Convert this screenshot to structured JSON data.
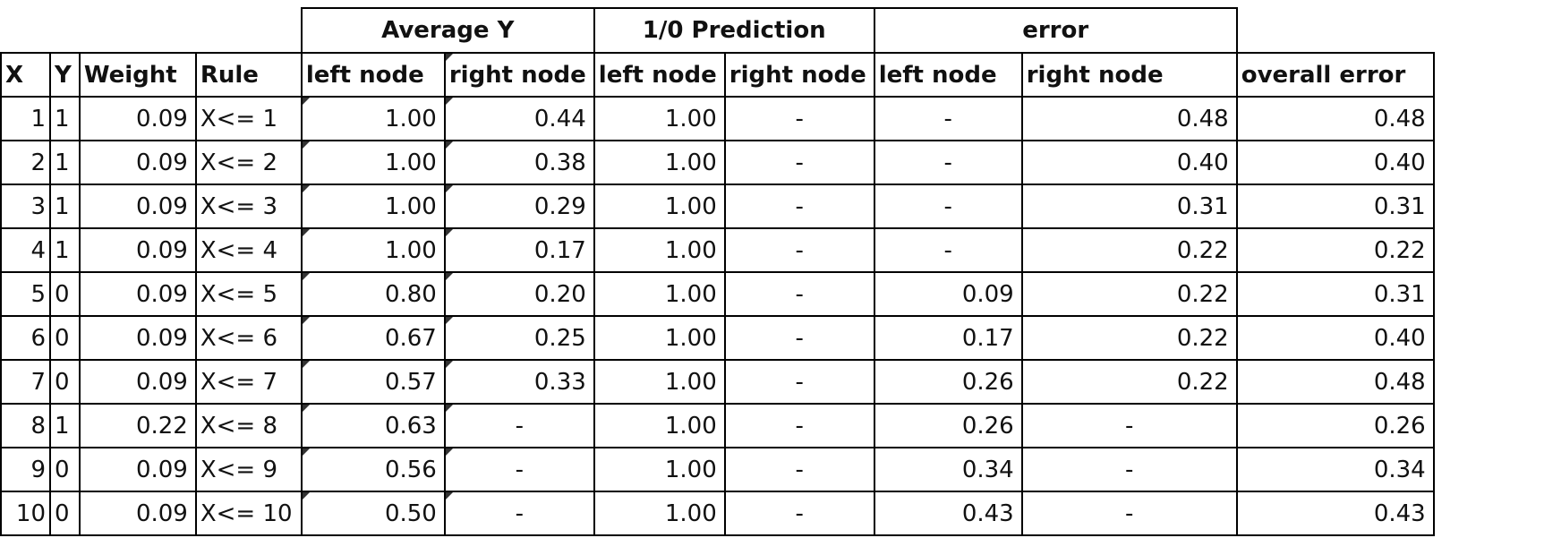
{
  "groups": {
    "average_y": "Average Y",
    "prediction": "1/0 Prediction",
    "error": "error"
  },
  "headers": {
    "x": "X",
    "y": "Y",
    "weight": "Weight",
    "rule": "Rule",
    "avg_left": "left node",
    "avg_right": "right node",
    "pred_left": "left node",
    "pred_right": "right node",
    "err_left": "left node",
    "err_right": "right node",
    "overall": "overall error"
  },
  "rows": [
    {
      "x": "1",
      "y": "1",
      "weight": "0.09",
      "rule": "X<= 1",
      "avg_left": "1.00",
      "avg_right": "0.44",
      "pred_left": "1.00",
      "pred_right": "-",
      "err_left": "-",
      "err_right": "0.48",
      "overall": "0.48"
    },
    {
      "x": "2",
      "y": "1",
      "weight": "0.09",
      "rule": "X<= 2",
      "avg_left": "1.00",
      "avg_right": "0.38",
      "pred_left": "1.00",
      "pred_right": "-",
      "err_left": "-",
      "err_right": "0.40",
      "overall": "0.40"
    },
    {
      "x": "3",
      "y": "1",
      "weight": "0.09",
      "rule": "X<= 3",
      "avg_left": "1.00",
      "avg_right": "0.29",
      "pred_left": "1.00",
      "pred_right": "-",
      "err_left": "-",
      "err_right": "0.31",
      "overall": "0.31"
    },
    {
      "x": "4",
      "y": "1",
      "weight": "0.09",
      "rule": "X<= 4",
      "avg_left": "1.00",
      "avg_right": "0.17",
      "pred_left": "1.00",
      "pred_right": "-",
      "err_left": "-",
      "err_right": "0.22",
      "overall": "0.22"
    },
    {
      "x": "5",
      "y": "0",
      "weight": "0.09",
      "rule": "X<= 5",
      "avg_left": "0.80",
      "avg_right": "0.20",
      "pred_left": "1.00",
      "pred_right": "-",
      "err_left": "0.09",
      "err_right": "0.22",
      "overall": "0.31"
    },
    {
      "x": "6",
      "y": "0",
      "weight": "0.09",
      "rule": "X<= 6",
      "avg_left": "0.67",
      "avg_right": "0.25",
      "pred_left": "1.00",
      "pred_right": "-",
      "err_left": "0.17",
      "err_right": "0.22",
      "overall": "0.40"
    },
    {
      "x": "7",
      "y": "0",
      "weight": "0.09",
      "rule": "X<= 7",
      "avg_left": "0.57",
      "avg_right": "0.33",
      "pred_left": "1.00",
      "pred_right": "-",
      "err_left": "0.26",
      "err_right": "0.22",
      "overall": "0.48"
    },
    {
      "x": "8",
      "y": "1",
      "weight": "0.22",
      "rule": "X<= 8",
      "avg_left": "0.63",
      "avg_right": "-",
      "pred_left": "1.00",
      "pred_right": "-",
      "err_left": "0.26",
      "err_right": "-",
      "overall": "0.26"
    },
    {
      "x": "9",
      "y": "0",
      "weight": "0.09",
      "rule": "X<= 9",
      "avg_left": "0.56",
      "avg_right": "-",
      "pred_left": "1.00",
      "pred_right": "-",
      "err_left": "0.34",
      "err_right": "-",
      "overall": "0.34"
    },
    {
      "x": "10",
      "y": "0",
      "weight": "0.09",
      "rule": "X<= 10",
      "avg_left": "0.50",
      "avg_right": "-",
      "pred_left": "1.00",
      "pred_right": "-",
      "err_left": "0.43",
      "err_right": "-",
      "overall": "0.43"
    }
  ]
}
